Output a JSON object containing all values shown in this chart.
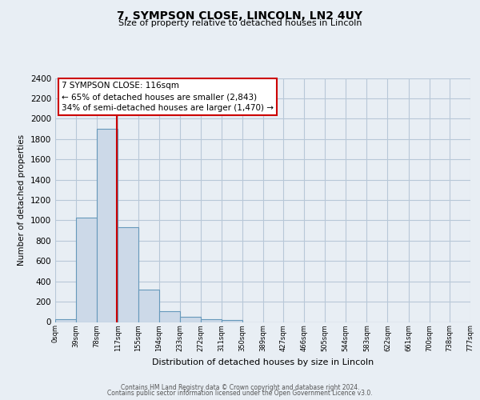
{
  "title_line1": "7, SYMPSON CLOSE, LINCOLN, LN2 4UY",
  "title_line2": "Size of property relative to detached houses in Lincoln",
  "xlabel": "Distribution of detached houses by size in Lincoln",
  "ylabel": "Number of detached properties",
  "bar_edges": [
    0,
    39,
    78,
    117,
    155,
    194,
    233,
    272,
    311,
    350,
    389,
    427,
    466,
    505,
    544,
    583,
    622,
    661,
    700,
    738,
    777
  ],
  "bar_values": [
    25,
    1025,
    1900,
    930,
    320,
    105,
    50,
    30,
    20,
    0,
    0,
    0,
    0,
    0,
    0,
    0,
    0,
    0,
    0,
    0
  ],
  "bar_color": "#ccd9e8",
  "bar_edge_color": "#6699bb",
  "red_line_x": 116,
  "ylim": [
    0,
    2400
  ],
  "yticks": [
    0,
    200,
    400,
    600,
    800,
    1000,
    1200,
    1400,
    1600,
    1800,
    2000,
    2200,
    2400
  ],
  "xtick_labels": [
    "0sqm",
    "39sqm",
    "78sqm",
    "117sqm",
    "155sqm",
    "194sqm",
    "233sqm",
    "272sqm",
    "311sqm",
    "350sqm",
    "389sqm",
    "427sqm",
    "466sqm",
    "505sqm",
    "544sqm",
    "583sqm",
    "622sqm",
    "661sqm",
    "700sqm",
    "738sqm",
    "777sqm"
  ],
  "annotation_title": "7 SYMPSON CLOSE: 116sqm",
  "annotation_line1": "← 65% of detached houses are smaller (2,843)",
  "annotation_line2": "34% of semi-detached houses are larger (1,470) →",
  "annotation_box_color": "#ffffff",
  "annotation_box_edge": "#cc0000",
  "footer_line1": "Contains HM Land Registry data © Crown copyright and database right 2024.",
  "footer_line2": "Contains public sector information licensed under the Open Government Licence v3.0.",
  "bg_color": "#e8eef4",
  "plot_bg_color": "#e8eef4",
  "grid_color": "#b8c8d8"
}
